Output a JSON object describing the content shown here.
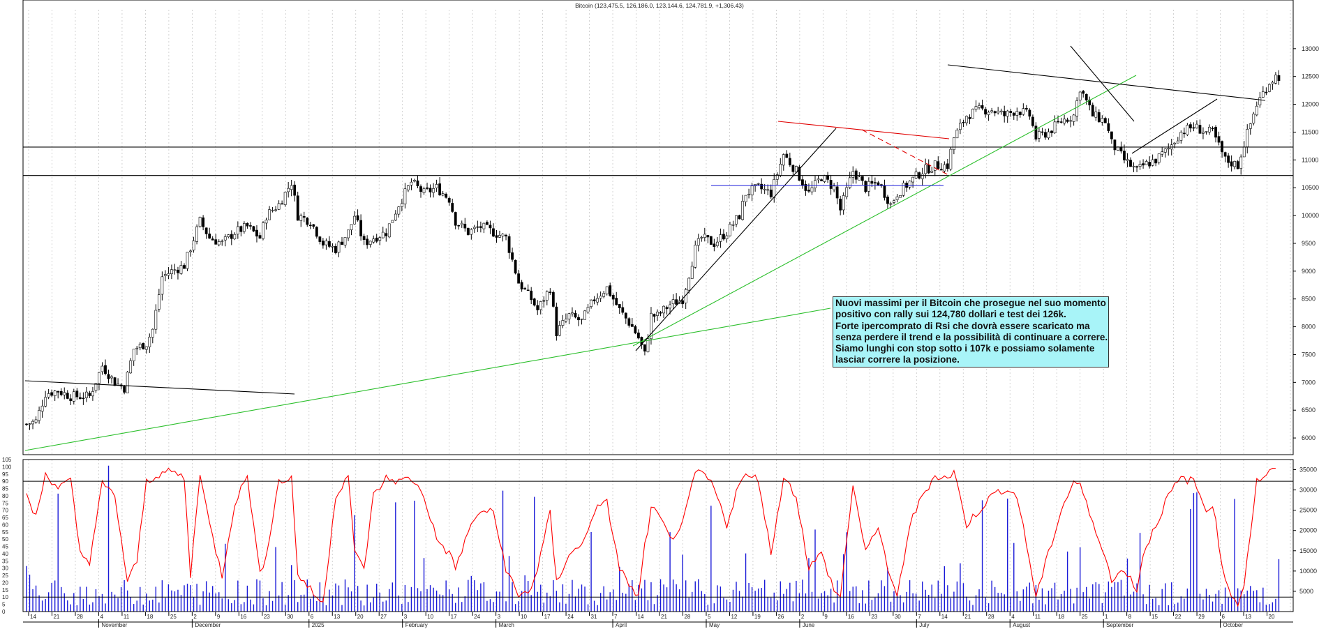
{
  "chart_data": [
    {
      "type": "candlestick",
      "title": "Bitcoin (123,475.5, 126,186.0, 123,144.6, 124,781.9, +1,306.43)",
      "ylim": [
        5700,
        13700
      ],
      "y_ticks": [
        6000,
        6500,
        7000,
        7500,
        8000,
        8500,
        9000,
        9500,
        10000,
        10500,
        11000,
        11500,
        12000,
        12500,
        13000
      ],
      "x_months": [
        "November",
        "December",
        "2025",
        "February",
        "March",
        "April",
        "May",
        "June",
        "July",
        "August",
        "September",
        "October"
      ],
      "x_days": [
        "14",
        "21",
        "28",
        "4",
        "11",
        "18",
        "25",
        "2",
        "9",
        "16",
        "23",
        "30",
        "6",
        "13",
        "20",
        "27",
        "3",
        "10",
        "17",
        "24",
        "3",
        "10",
        "17",
        "24",
        "31",
        "7",
        "14",
        "21",
        "28",
        "5",
        "12",
        "19",
        "26",
        "2",
        "9",
        "16",
        "23",
        "30",
        "7",
        "14",
        "21",
        "28",
        "4",
        "11",
        "18",
        "25",
        "1",
        "8",
        "15",
        "22",
        "29",
        "6",
        "13",
        "20"
      ],
      "path": [
        [
          0,
          6250
        ],
        [
          3,
          6300
        ],
        [
          6,
          6800
        ],
        [
          10,
          6850
        ],
        [
          14,
          6750
        ],
        [
          20,
          6750
        ],
        [
          24,
          7300
        ],
        [
          28,
          7000
        ],
        [
          31,
          6900
        ],
        [
          34,
          7600
        ],
        [
          38,
          7700
        ],
        [
          40,
          7950
        ],
        [
          43,
          8900
        ],
        [
          46,
          9000
        ],
        [
          50,
          9100
        ],
        [
          55,
          9900
        ],
        [
          58,
          9600
        ],
        [
          62,
          9500
        ],
        [
          66,
          9700
        ],
        [
          70,
          9800
        ],
        [
          74,
          9600
        ],
        [
          76,
          10000
        ],
        [
          80,
          10200
        ],
        [
          84,
          10600
        ],
        [
          86,
          10000
        ],
        [
          90,
          9900
        ],
        [
          94,
          9500
        ],
        [
          98,
          9400
        ],
        [
          102,
          9700
        ],
        [
          104,
          10000
        ],
        [
          107,
          9500
        ],
        [
          110,
          9600
        ],
        [
          114,
          9700
        ],
        [
          118,
          10200
        ],
        [
          122,
          10600
        ],
        [
          126,
          10400
        ],
        [
          130,
          10500
        ],
        [
          134,
          10300
        ],
        [
          136,
          9900
        ],
        [
          140,
          9700
        ],
        [
          144,
          9800
        ],
        [
          148,
          9700
        ],
        [
          152,
          9600
        ],
        [
          156,
          8800
        ],
        [
          160,
          8500
        ],
        [
          162,
          8300
        ],
        [
          166,
          8700
        ],
        [
          168,
          7900
        ],
        [
          172,
          8200
        ],
        [
          176,
          8100
        ],
        [
          180,
          8500
        ],
        [
          184,
          8700
        ],
        [
          188,
          8300
        ],
        [
          192,
          8000
        ],
        [
          194,
          7800
        ],
        [
          196,
          7500
        ],
        [
          198,
          8200
        ],
        [
          200,
          8200
        ],
        [
          204,
          8400
        ],
        [
          208,
          8500
        ],
        [
          212,
          9400
        ],
        [
          214,
          9600
        ],
        [
          218,
          9500
        ],
        [
          222,
          9700
        ],
        [
          226,
          10000
        ],
        [
          228,
          10400
        ],
        [
          232,
          10500
        ],
        [
          236,
          10400
        ],
        [
          240,
          11100
        ],
        [
          244,
          10800
        ],
        [
          248,
          10400
        ],
        [
          252,
          10700
        ],
        [
          256,
          10500
        ],
        [
          258,
          10100
        ],
        [
          262,
          10800
        ],
        [
          266,
          10500
        ],
        [
          270,
          10600
        ],
        [
          274,
          10200
        ],
        [
          276,
          10400
        ],
        [
          280,
          10600
        ],
        [
          284,
          10800
        ],
        [
          288,
          10900
        ],
        [
          292,
          10900
        ],
        [
          294,
          11400
        ],
        [
          298,
          11800
        ],
        [
          302,
          11900
        ],
        [
          306,
          11900
        ],
        [
          310,
          11800
        ],
        [
          314,
          11900
        ],
        [
          318,
          11800
        ],
        [
          320,
          11400
        ],
        [
          324,
          11500
        ],
        [
          328,
          11700
        ],
        [
          332,
          11800
        ],
        [
          334,
          12300
        ],
        [
          338,
          11800
        ],
        [
          342,
          11700
        ],
        [
          344,
          11300
        ],
        [
          348,
          11000
        ],
        [
          352,
          10800
        ],
        [
          354,
          10900
        ],
        [
          358,
          11000
        ],
        [
          362,
          11200
        ],
        [
          366,
          11500
        ],
        [
          370,
          11600
        ],
        [
          374,
          11500
        ],
        [
          376,
          11500
        ],
        [
          380,
          11000
        ],
        [
          384,
          10900
        ],
        [
          386,
          11300
        ],
        [
          390,
          12000
        ],
        [
          394,
          12400
        ],
        [
          396,
          12500
        ]
      ],
      "h_levels": [
        11230,
        10720
      ],
      "volume_ylim": [
        0,
        37500
      ],
      "volume_y_ticks": [
        5000,
        10000,
        15000,
        20000,
        25000,
        30000,
        35000
      ],
      "rsi_ylim": [
        0,
        105
      ],
      "rsi_y_ticks": [
        0,
        5,
        10,
        15,
        20,
        25,
        30,
        35,
        40,
        45,
        50,
        55,
        60,
        65,
        70,
        75,
        80,
        85,
        90,
        95,
        100,
        105
      ],
      "rsi_levels": [
        90,
        10
      ],
      "rsi_path": [
        [
          0,
          80
        ],
        [
          3,
          65
        ],
        [
          6,
          95
        ],
        [
          10,
          86
        ],
        [
          14,
          90
        ],
        [
          17,
          40
        ],
        [
          20,
          35
        ],
        [
          24,
          88
        ],
        [
          28,
          80
        ],
        [
          32,
          20
        ],
        [
          35,
          35
        ],
        [
          38,
          90
        ],
        [
          42,
          95
        ],
        [
          46,
          97
        ],
        [
          50,
          92
        ],
        [
          52,
          25
        ],
        [
          55,
          97
        ],
        [
          58,
          60
        ],
        [
          62,
          25
        ],
        [
          66,
          75
        ],
        [
          70,
          94
        ],
        [
          74,
          25
        ],
        [
          76,
          40
        ],
        [
          80,
          90
        ],
        [
          84,
          92
        ],
        [
          86,
          26
        ],
        [
          90,
          15
        ],
        [
          94,
          5
        ],
        [
          98,
          80
        ],
        [
          102,
          95
        ],
        [
          104,
          40
        ],
        [
          107,
          30
        ],
        [
          110,
          80
        ],
        [
          114,
          92
        ],
        [
          118,
          90
        ],
        [
          122,
          92
        ],
        [
          126,
          80
        ],
        [
          130,
          50
        ],
        [
          134,
          40
        ],
        [
          136,
          30
        ],
        [
          140,
          55
        ],
        [
          144,
          70
        ],
        [
          148,
          68
        ],
        [
          152,
          30
        ],
        [
          156,
          10
        ],
        [
          160,
          16
        ],
        [
          162,
          30
        ],
        [
          166,
          68
        ],
        [
          168,
          20
        ],
        [
          172,
          40
        ],
        [
          176,
          45
        ],
        [
          180,
          70
        ],
        [
          184,
          75
        ],
        [
          188,
          30
        ],
        [
          192,
          15
        ],
        [
          194,
          10
        ],
        [
          196,
          45
        ],
        [
          198,
          70
        ],
        [
          200,
          68
        ],
        [
          204,
          50
        ],
        [
          208,
          60
        ],
        [
          212,
          95
        ],
        [
          214,
          97
        ],
        [
          218,
          85
        ],
        [
          222,
          60
        ],
        [
          226,
          90
        ],
        [
          228,
          93
        ],
        [
          232,
          92
        ],
        [
          236,
          40
        ],
        [
          240,
          93
        ],
        [
          244,
          80
        ],
        [
          248,
          30
        ],
        [
          252,
          40
        ],
        [
          256,
          15
        ],
        [
          258,
          10
        ],
        [
          262,
          88
        ],
        [
          266,
          40
        ],
        [
          270,
          60
        ],
        [
          274,
          20
        ],
        [
          276,
          10
        ],
        [
          280,
          60
        ],
        [
          284,
          80
        ],
        [
          288,
          94
        ],
        [
          292,
          92
        ],
        [
          294,
          97
        ],
        [
          298,
          60
        ],
        [
          302,
          70
        ],
        [
          306,
          80
        ],
        [
          310,
          85
        ],
        [
          314,
          80
        ],
        [
          318,
          35
        ],
        [
          320,
          10
        ],
        [
          324,
          40
        ],
        [
          328,
          70
        ],
        [
          332,
          90
        ],
        [
          334,
          88
        ],
        [
          338,
          60
        ],
        [
          342,
          40
        ],
        [
          344,
          20
        ],
        [
          348,
          30
        ],
        [
          352,
          15
        ],
        [
          354,
          40
        ],
        [
          358,
          60
        ],
        [
          362,
          80
        ],
        [
          366,
          92
        ],
        [
          370,
          90
        ],
        [
          374,
          70
        ],
        [
          376,
          75
        ],
        [
          380,
          20
        ],
        [
          384,
          5
        ],
        [
          386,
          20
        ],
        [
          390,
          90
        ],
        [
          394,
          96
        ],
        [
          396,
          98
        ]
      ]
    }
  ],
  "annotation_lines": [
    "Nuovi massimi per il Bitcoin che prosegue nel suo momento",
    "positivo con rally sui 124,780 dollari e test dei 126k.",
    "Forte ipercomprato di Rsi che dovrà essere scaricato ma",
    "senza perdere il trend e la possibilità di continuare a correre.",
    "Siamo lunghi con stop sotto i 107k e possiamo solamente",
    "lasciar correre la posizione."
  ],
  "colors": {
    "up": "#ffffff",
    "down": "#000000",
    "rsi": "#ff0000",
    "volume": "#1a1ad8",
    "trend_green": "#2bbf2b",
    "trend_red": "#e00000",
    "support_blue": "#1a1ad8",
    "note_bg": "#a8f4f8"
  }
}
